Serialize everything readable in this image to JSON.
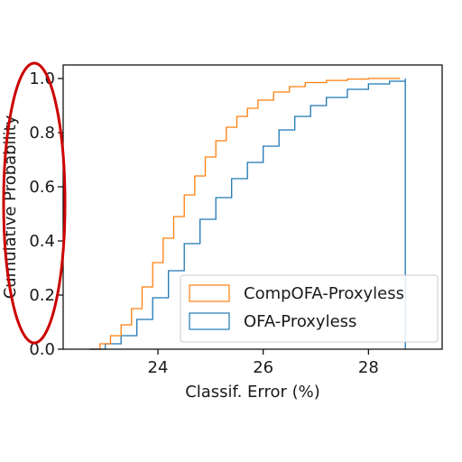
{
  "chart_data": {
    "type": "line",
    "xlabel": "Classif. Error (%)",
    "ylabel": "Cumulative Probability",
    "xlim": [
      22.2,
      29.4
    ],
    "ylim": [
      0.0,
      1.05
    ],
    "xticks": [
      24,
      26,
      28
    ],
    "xtick_labels": [
      "24",
      "26",
      "28"
    ],
    "yticks": [
      0.0,
      0.2,
      0.4,
      0.6,
      0.8,
      1.0
    ],
    "ytick_labels": [
      "0.0",
      "0.2",
      "0.4",
      "0.6",
      "0.8",
      "1.0"
    ],
    "grid": false,
    "legend_position": "lower-right",
    "series": [
      {
        "name": "CompOFA-Proxyless",
        "color": "#ff7f0e",
        "style": "step",
        "x": [
          22.7,
          22.9,
          23.1,
          23.3,
          23.5,
          23.7,
          23.9,
          24.1,
          24.3,
          24.5,
          24.7,
          24.9,
          25.1,
          25.3,
          25.5,
          25.7,
          25.9,
          26.2,
          26.5,
          26.8,
          27.2,
          27.6,
          28.0,
          28.6
        ],
        "y": [
          0.0,
          0.02,
          0.05,
          0.09,
          0.15,
          0.23,
          0.32,
          0.41,
          0.49,
          0.57,
          0.64,
          0.71,
          0.77,
          0.82,
          0.86,
          0.89,
          0.92,
          0.95,
          0.97,
          0.985,
          0.993,
          0.998,
          1.0,
          1.0
        ]
      },
      {
        "name": "OFA-Proxyless",
        "color": "#1f77b4",
        "style": "step",
        "x": [
          22.7,
          23.0,
          23.3,
          23.6,
          23.9,
          24.2,
          24.5,
          24.8,
          25.1,
          25.4,
          25.7,
          26.0,
          26.3,
          26.6,
          26.9,
          27.2,
          27.6,
          28.0,
          28.4,
          28.7
        ],
        "y": [
          0.0,
          0.02,
          0.05,
          0.11,
          0.19,
          0.29,
          0.39,
          0.48,
          0.56,
          0.63,
          0.69,
          0.75,
          0.81,
          0.86,
          0.9,
          0.93,
          0.96,
          0.98,
          0.99,
          1.0
        ]
      }
    ]
  }
}
